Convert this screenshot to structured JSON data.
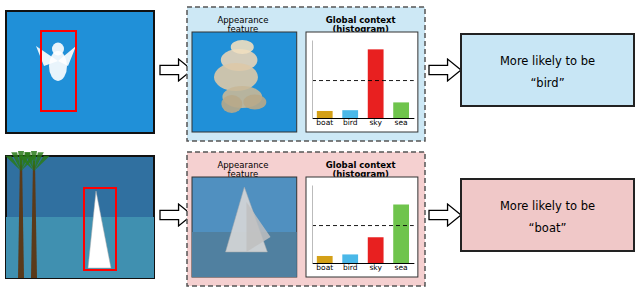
{
  "chart_data": [
    {
      "type": "bar",
      "title": "Global context",
      "subtitle": "(histogram)",
      "annotations": [
        "Appearance",
        "feature",
        "More likely to be",
        "“bird”"
      ],
      "categories": [
        "boat",
        "bird",
        "sky",
        "sea"
      ],
      "values": [
        0.09,
        0.1,
        0.88,
        0.2
      ],
      "colors": [
        "#d4a017",
        "#4ab8e8",
        "#e82020",
        "#6fc44c"
      ],
      "threshold": 0.48,
      "ylim": [
        0,
        1.0
      ],
      "tick_labels": "x",
      "grid": false
    },
    {
      "type": "bar",
      "title": "Global context",
      "subtitle": "(histogram)",
      "annotations": [
        "Appearance",
        "feature",
        "More likely to be",
        "“boat”"
      ],
      "categories": [
        "boat",
        "bird",
        "sky",
        "sea"
      ],
      "values": [
        0.09,
        0.11,
        0.33,
        0.75
      ],
      "colors": [
        "#d4a017",
        "#4ab8e8",
        "#e82020",
        "#6fc44c"
      ],
      "threshold": 0.48,
      "ylim": [
        0,
        1.0
      ],
      "tick_labels": "x",
      "grid": false
    }
  ]
}
